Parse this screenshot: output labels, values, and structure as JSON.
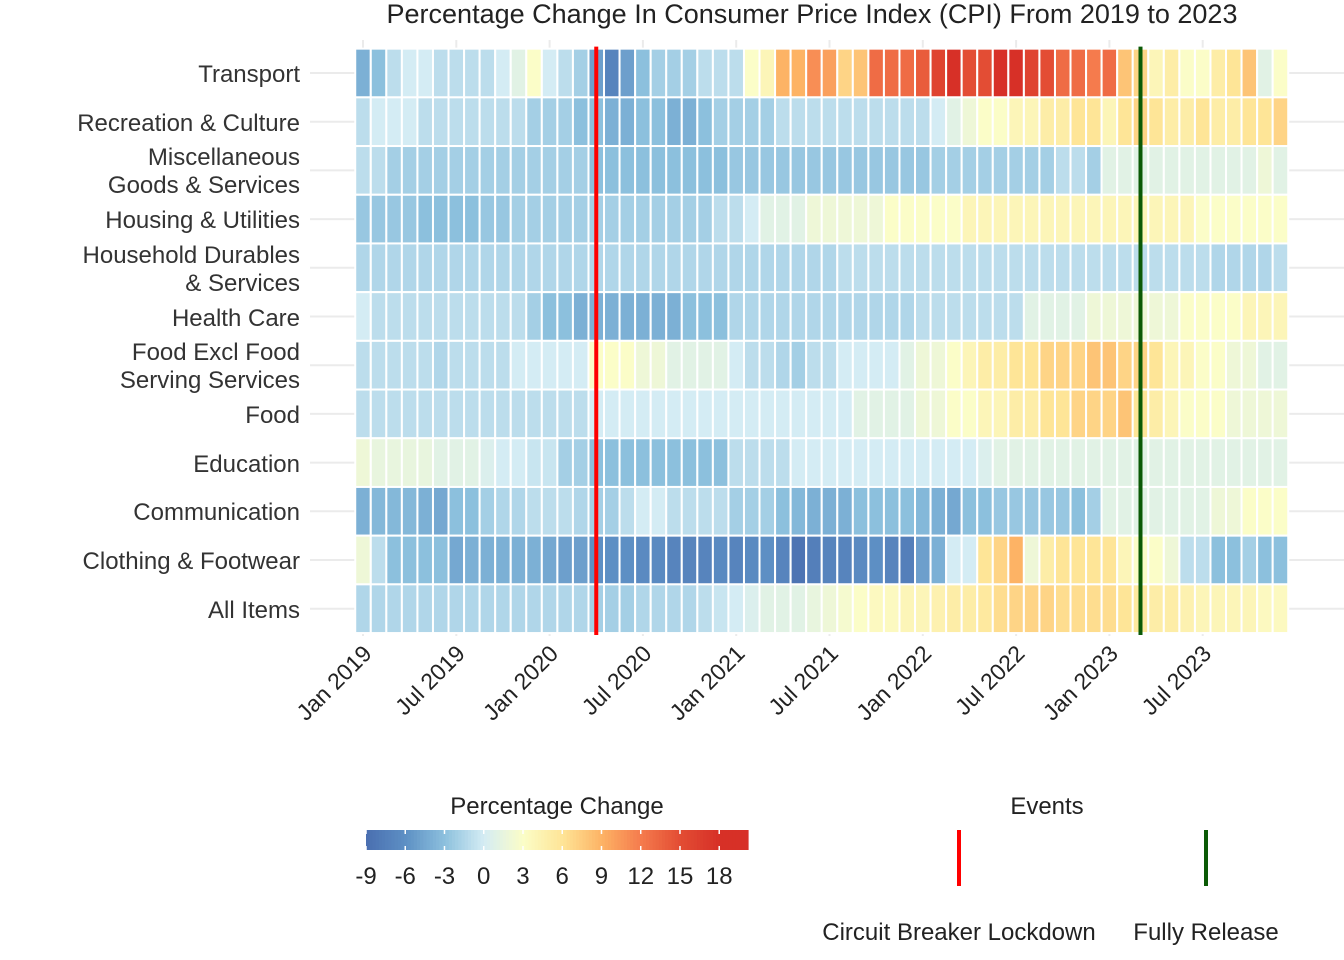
{
  "chart_data": {
    "type": "heatmap",
    "title": "Percentage Change In Consumer Price Index (CPI) From 2019 to 2023",
    "categories": [
      "Transport",
      "Recreation & Culture",
      "Miscellaneous\nGoods & Services",
      "Housing & Utilities",
      "Household Durables\n& Services",
      "Health Care",
      "Food Excl Food\nServing Services",
      "Food",
      "Education",
      "Communication",
      "Clothing & Footwear",
      "All Items"
    ],
    "x": [
      "2019-01",
      "2019-02",
      "2019-03",
      "2019-04",
      "2019-05",
      "2019-06",
      "2019-07",
      "2019-08",
      "2019-09",
      "2019-10",
      "2019-11",
      "2019-12",
      "2020-01",
      "2020-02",
      "2020-03",
      "2020-04",
      "2020-05",
      "2020-06",
      "2020-07",
      "2020-08",
      "2020-09",
      "2020-10",
      "2020-11",
      "2020-12",
      "2021-01",
      "2021-02",
      "2021-03",
      "2021-04",
      "2021-05",
      "2021-06",
      "2021-07",
      "2021-08",
      "2021-09",
      "2021-10",
      "2021-11",
      "2021-12",
      "2022-01",
      "2022-02",
      "2022-03",
      "2022-04",
      "2022-05",
      "2022-06",
      "2022-07",
      "2022-08",
      "2022-09",
      "2022-10",
      "2022-11",
      "2022-12",
      "2023-01",
      "2023-02",
      "2023-03",
      "2023-04",
      "2023-05",
      "2023-06",
      "2023-07",
      "2023-08",
      "2023-09",
      "2023-10",
      "2023-11",
      "2023-12"
    ],
    "values": [
      [
        -4,
        -3,
        -1,
        0,
        0,
        -1,
        -1,
        -1,
        -1,
        0,
        1,
        3,
        0,
        -1,
        -2,
        -5,
        -7,
        -5,
        -3,
        -2,
        -2,
        -2,
        -1,
        -1,
        -1,
        3,
        4,
        9,
        9,
        11,
        10,
        7,
        8,
        13,
        13,
        13,
        14,
        16,
        18,
        15,
        15,
        18,
        18,
        16,
        15,
        13,
        13,
        12,
        13,
        8,
        7,
        4,
        5,
        3,
        3,
        5,
        6,
        8,
        1,
        3
      ],
      [
        -1,
        0,
        0,
        0,
        -1,
        -1,
        -1,
        -1,
        -1,
        -1,
        -1,
        -2,
        -2,
        -2,
        -3,
        -3,
        -4,
        -4,
        -3,
        -3,
        -4,
        -4,
        -3,
        -2,
        -2,
        -2,
        -2,
        -1,
        -1,
        -1,
        -1,
        -1,
        -1,
        -1,
        -1,
        -1,
        -1,
        0,
        1,
        2,
        3,
        3,
        4,
        4,
        5,
        5,
        6,
        6,
        4,
        6,
        7,
        6,
        5,
        5,
        6,
        5,
        5,
        6,
        6,
        7
      ],
      [
        -1,
        -1,
        -2,
        -2,
        -2,
        -2,
        -2,
        -2,
        -2,
        -2,
        -2,
        -2,
        -2,
        -2,
        -2,
        -3,
        -3,
        -3,
        -3,
        -3,
        -3,
        -3,
        -3,
        -3,
        -2.5,
        -2.5,
        -2.5,
        -2.5,
        -2.5,
        -2.5,
        -2.5,
        -2.5,
        -2.5,
        -2.5,
        -2.5,
        -2.5,
        -2.5,
        -2,
        -2,
        -2,
        -2,
        -2,
        -2,
        -2,
        -2,
        -1,
        -1,
        -2,
        1,
        1,
        1,
        1,
        1,
        1,
        1,
        1,
        1,
        1,
        2,
        1
      ],
      [
        -2.5,
        -2.5,
        -2.5,
        -2.5,
        -3,
        -3,
        -3,
        -3,
        -2.5,
        -2.5,
        -2,
        -2,
        -2,
        -2,
        -2,
        -2,
        -2,
        -2,
        -2,
        -2,
        -2,
        -2,
        -2,
        -1,
        -1,
        0,
        1,
        1,
        1,
        2,
        2,
        2,
        2,
        2,
        3,
        3,
        3,
        3,
        3,
        4,
        4,
        4,
        4,
        4,
        4,
        4,
        4,
        4,
        4,
        4,
        4,
        4,
        4,
        4,
        3,
        3,
        3,
        3,
        3,
        3
      ],
      [
        -1.5,
        -1.5,
        -1.5,
        -1.5,
        -1.5,
        -1.5,
        -1.5,
        -1.5,
        -1.5,
        -1.5,
        -1.5,
        -1.5,
        -1.5,
        -1.5,
        -1.5,
        -1.5,
        -1.5,
        -1.5,
        -1.5,
        -1.5,
        -1.5,
        -1.5,
        -1.5,
        -1.5,
        -1.5,
        -1.5,
        -1.5,
        -1.5,
        -1.5,
        -1.5,
        -1.5,
        -1,
        -1,
        -1,
        -1,
        -1,
        -1,
        -1,
        -1,
        -1,
        -1,
        -1,
        -1,
        -1,
        -1,
        -1,
        -1,
        -1,
        -1,
        -1,
        -1,
        -1,
        -1,
        -1,
        -1,
        -1.5,
        -1.5,
        -1.5,
        -1.5,
        -1
      ],
      [
        0,
        -1,
        -1,
        -1,
        -1,
        -1,
        -1,
        -1,
        -1,
        -1,
        -1,
        -2,
        -3,
        -3,
        -4,
        -4,
        -4,
        -4,
        -4,
        -4,
        -4,
        -3,
        -3,
        -3,
        -1.5,
        -1.5,
        -1.5,
        -1.5,
        -1.5,
        -1.5,
        -1.5,
        -1.5,
        -1.5,
        -1.5,
        -1.5,
        -1.5,
        -1,
        -1,
        -1,
        -1,
        -1,
        -1,
        -1,
        1,
        1,
        1,
        1,
        2,
        2,
        2,
        2,
        2,
        2,
        3,
        3,
        3,
        3,
        4,
        4,
        4
      ],
      [
        -1,
        -1,
        -1,
        -1,
        -1,
        -1.5,
        -1,
        -1,
        -1,
        -1,
        0,
        0,
        0,
        0,
        0,
        3,
        3,
        3,
        2,
        2,
        1,
        1,
        1,
        1,
        0,
        -1,
        -1,
        -1.5,
        -2,
        -1,
        -1,
        0,
        0,
        0,
        0,
        1,
        2,
        2,
        3,
        4,
        5,
        5,
        6,
        6,
        7,
        7,
        7,
        8,
        8,
        7,
        7,
        6,
        4,
        4,
        3,
        3,
        2,
        2,
        1,
        1
      ],
      [
        -1,
        -1,
        -1,
        -1,
        -1,
        -1,
        -1,
        -1,
        -1,
        -1,
        -1,
        -1,
        -1,
        -1,
        -1,
        0,
        0,
        0,
        0,
        0,
        0,
        0,
        0,
        0,
        0,
        0,
        0,
        0,
        0,
        0,
        0,
        0,
        1,
        1,
        1,
        1,
        2,
        2,
        3,
        3,
        4,
        4,
        5,
        5,
        6,
        6,
        7,
        7,
        7,
        8,
        6,
        5,
        4,
        3,
        3,
        3,
        2,
        2,
        2,
        2
      ],
      [
        2,
        1.5,
        1.5,
        1.5,
        1.5,
        1,
        1,
        1,
        0.5,
        0,
        0,
        -0.5,
        -0.5,
        -2,
        -2,
        -3,
        -3,
        -3,
        -3,
        -3,
        -3,
        -3,
        -3,
        -3,
        -1,
        -1,
        -1,
        -1,
        0,
        0,
        0,
        0,
        0,
        0,
        0,
        0,
        0,
        0,
        0,
        0,
        0.5,
        1,
        1,
        1,
        1,
        1,
        1,
        1,
        1,
        1,
        1,
        1,
        1,
        1,
        1,
        1,
        1,
        1,
        1,
        1
      ],
      [
        -4,
        -3.5,
        -3.5,
        -3.5,
        -4,
        -4.5,
        -3,
        -3,
        -2,
        -1.5,
        -1.5,
        -1,
        -1,
        -1,
        -1.5,
        -2,
        -2,
        -1,
        0,
        0,
        -1,
        -1,
        -1,
        -1,
        -2,
        -2,
        -2,
        -3,
        -3.5,
        -4,
        -4,
        -4,
        -3,
        -3,
        -3,
        -3,
        -3.5,
        -4,
        -4.5,
        -3,
        -3,
        -2.5,
        -2.5,
        -2.5,
        -2.5,
        -2.5,
        -3,
        -2,
        1,
        1,
        1,
        1,
        1,
        1,
        1,
        2,
        2,
        3,
        3,
        3
      ],
      [
        2,
        -1,
        -3,
        -3,
        -3,
        -3,
        -4.5,
        -4,
        -4,
        -4,
        -4,
        -4,
        -4.5,
        -5,
        -5,
        -6,
        -6,
        -6,
        -6.5,
        -6.5,
        -7,
        -7,
        -7,
        -6.5,
        -7,
        -6.5,
        -6,
        -7,
        -8.5,
        -7.5,
        -7,
        -7,
        -6.5,
        -6,
        -7,
        -7.5,
        -5,
        -4,
        0,
        0,
        6,
        7,
        9,
        2,
        5,
        6,
        6,
        6,
        6,
        4,
        3,
        3,
        2,
        -1,
        -1,
        -3,
        -3,
        -2,
        -3,
        -3
      ],
      [
        -1.5,
        -1.5,
        -1.5,
        -1.5,
        -1.5,
        -1.5,
        -1.5,
        -1.5,
        -1.5,
        -1.5,
        -1.5,
        -1.5,
        -1.5,
        -1.5,
        -1.5,
        -2,
        -2,
        -2,
        -1.5,
        -1.5,
        -1.5,
        -1.5,
        -1,
        -0.5,
        0,
        0.5,
        1,
        1,
        1,
        1.5,
        2,
        2.5,
        3,
        3.5,
        3.5,
        4,
        4,
        4.5,
        5,
        5,
        5.5,
        6.5,
        7,
        7,
        7,
        6.5,
        6.5,
        6.5,
        6.5,
        6,
        5.5,
        5,
        5,
        4.5,
        4,
        4,
        4,
        4,
        3.5,
        3.5
      ]
    ],
    "xticks": [
      {
        "value": "2019-01",
        "label": "Jan 2019"
      },
      {
        "value": "2019-07",
        "label": "Jul 2019"
      },
      {
        "value": "2020-01",
        "label": "Jan 2020"
      },
      {
        "value": "2020-07",
        "label": "Jul 2020"
      },
      {
        "value": "2021-01",
        "label": "Jan 2021"
      },
      {
        "value": "2021-07",
        "label": "Jul 2021"
      },
      {
        "value": "2022-01",
        "label": "Jan 2022"
      },
      {
        "value": "2022-07",
        "label": "Jul 2022"
      },
      {
        "value": "2023-01",
        "label": "Jan 2023"
      },
      {
        "value": "2023-07",
        "label": "Jul 2023"
      }
    ],
    "grid": true,
    "legend": {
      "title": "Percentage Change",
      "lim": [
        -9,
        20.2
      ],
      "ticks": [
        -9,
        -6,
        -3,
        0,
        3,
        6,
        9,
        12,
        15,
        18
      ],
      "colors": [
        "#4a6fb0",
        "#5d8fc4",
        "#8cc0dd",
        "#d4ecf4",
        "#fbfdc8",
        "#fee597",
        "#fdb365",
        "#f57b4d",
        "#e34d34",
        "#d73027"
      ]
    },
    "events_title": "Events",
    "events": [
      {
        "name": "Circuit Breaker Lockdown",
        "date": "2020-04",
        "color": "#ff0000"
      },
      {
        "name": "Fully Release",
        "date": "2023-03",
        "color": "#0b5a06"
      }
    ]
  }
}
